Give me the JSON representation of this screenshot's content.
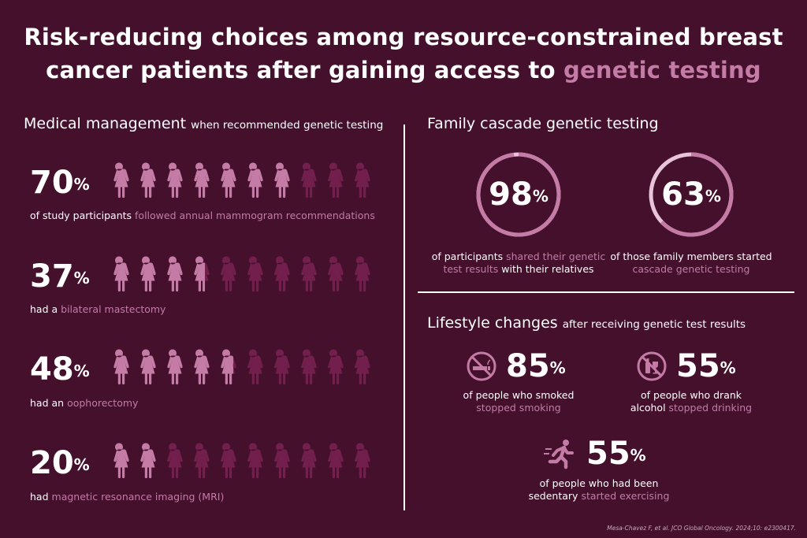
{
  "title": {
    "line1": "Risk-reducing choices among resource-constrained breast",
    "line2_plain": "cancer patients after gaining access to",
    "line2_accent": "genetic testing"
  },
  "medical": {
    "heading": "Medical management",
    "subheading": "when recommended genetic testing",
    "rows": [
      {
        "value": 70,
        "pct_text": "70",
        "pct_sign": "%",
        "caption_plain": "of study participants",
        "caption_highlight": "followed annual mammogram recommendations"
      },
      {
        "value": 37,
        "pct_text": "37",
        "pct_sign": "%",
        "caption_plain": "had a",
        "caption_highlight": "bilateral mastectomy"
      },
      {
        "value": 48,
        "pct_text": "48",
        "pct_sign": "%",
        "caption_plain": "had an",
        "caption_highlight": "oophorectomy"
      },
      {
        "value": 20,
        "pct_text": "20",
        "pct_sign": "%",
        "caption_plain": "had",
        "caption_highlight": "magnetic resonance imaging (MRI)"
      }
    ]
  },
  "cascade": {
    "heading": "Family cascade genetic testing",
    "items": [
      {
        "value": 98,
        "pct_text": "98",
        "pct_sign": "%",
        "cap1_plain": "of participants",
        "cap1_highlight": "shared their genetic",
        "cap2_highlight": "test results",
        "cap2_plain": "with their relatives"
      },
      {
        "value": 63,
        "pct_text": "63",
        "pct_sign": "%",
        "cap1_plain": "of those family members started",
        "cap2_highlight": "cascade genetic testing"
      }
    ]
  },
  "lifestyle": {
    "heading": "Lifestyle changes",
    "subheading": "after receiving genetic test results",
    "items": [
      {
        "icon": "no-smoking-icon",
        "pct_text": "85",
        "pct_sign": "%",
        "cap1": "of people who smoked",
        "cap2_highlight": "stopped smoking"
      },
      {
        "icon": "no-alcohol-icon",
        "pct_text": "55",
        "pct_sign": "%",
        "cap1": "of people who drank",
        "cap2_plain": "alcohol",
        "cap2_highlight": "stopped drinking"
      },
      {
        "icon": "running-person-icon",
        "pct_text": "55",
        "pct_sign": "%",
        "cap1": "of people who had been",
        "cap2_plain": "sedentary",
        "cap2_highlight": "started exercising"
      }
    ]
  },
  "citation": "Mesa-Chavez F, et al. JCO Global Oncology. 2024;10: e2300417.",
  "colors": {
    "background": "#44102c",
    "accent": "#c47ba6",
    "dim": "#731f4d",
    "ring_track": "#e8c4d8"
  }
}
